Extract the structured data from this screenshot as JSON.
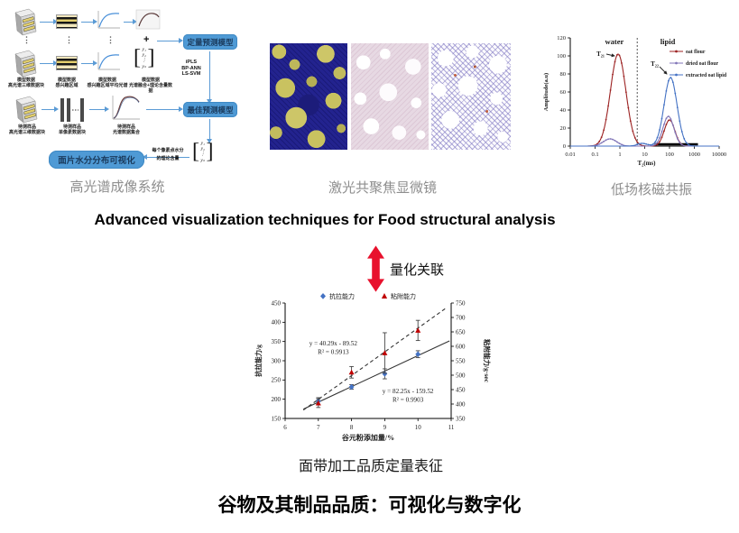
{
  "page": {
    "subtitle": "Advanced visualization techniques for Food structural analysis",
    "correlation_label": "量化关联",
    "scatter_caption": "面带加工品质定量表征",
    "main_title": "谷物及其制品品质：可视化与数字化",
    "accent_blue": "#4f9ad5",
    "accent_red": "#e8112d",
    "caption_gray": "#8e8e8e"
  },
  "panels": {
    "hyperspectral": {
      "caption": "高光谱成像系统",
      "flow": {
        "box_quant": "定量预测模型",
        "box_best": "最佳预测模型",
        "box_visual": "面片水分分布可视化",
        "algos": [
          "iPLS",
          "BP-ANN",
          "LS-SVM"
        ],
        "plus_sign": "+",
        "dots": "⋮",
        "pixel_note": [
          "每个像素点水分",
          "的理论含量"
        ],
        "vector": [
          "y₁",
          "y₂",
          "⋮",
          "yₙ"
        ],
        "row1_labels": [
          {
            "l1": "模型数据",
            "l2": "高光谱三维数据块"
          },
          {
            "l1": "模型数据",
            "l2": "感兴趣区域"
          },
          {
            "l1": "模型数据",
            "l2": "感兴趣区域平均光谱"
          },
          {
            "l1": "模型数据",
            "l2": "光谱融合+理论含量数据"
          }
        ],
        "row3_labels": [
          {
            "l1": "待测样品",
            "l2": "高光谱三维数据块"
          },
          {
            "l1": "待测样品",
            "l2": "单像素数据块"
          },
          {
            "l1": "待测样品",
            "l2": "光谱数据集合"
          }
        ]
      }
    },
    "confocal": {
      "caption": "激光共聚焦显微镜"
    },
    "nmr": {
      "caption": "低场核磁共振"
    }
  },
  "chart_data": [
    {
      "type": "line",
      "name": "low-field-nmr-relaxation",
      "xlabel": "T₂(ms)",
      "ylabel": "Amplitude(a.u)",
      "x_scale": "log",
      "xlim": [
        0.01,
        10000
      ],
      "ylim": [
        0,
        120
      ],
      "xticks": [
        "0.01",
        "0.1",
        "1",
        "10",
        "100",
        "1000",
        "10000"
      ],
      "yticks": [
        0,
        20,
        40,
        60,
        80,
        100,
        120
      ],
      "legend_position": "top-right",
      "annotations": {
        "region_left": "water",
        "region_right": "lipid",
        "divider_x_ms": 5,
        "t21_label": "T₂₁",
        "t21_peak": {
          "x_ms": 0.85,
          "y": 102
        },
        "t22_label": "T₂₂",
        "t22_peak": {
          "x_ms": 110,
          "y": 76
        },
        "baseline_bar_ms": [
          25,
          1400
        ]
      },
      "series": [
        {
          "name": "oat flour",
          "color": "#9c2222",
          "peaks": [
            {
              "center_ms": 0.85,
              "height": 102,
              "sigma_log": 0.31
            },
            {
              "center_ms": 100,
              "height": 29,
              "sigma_log": 0.21
            }
          ]
        },
        {
          "name": "dried oat flour",
          "color": "#8176b8",
          "peaks": [
            {
              "center_ms": 0.4,
              "height": 8,
              "sigma_log": 0.27
            },
            {
              "center_ms": 90,
              "height": 33,
              "sigma_log": 0.22
            }
          ]
        },
        {
          "name": "extracted oat lipid",
          "color": "#4472c4",
          "peaks": [
            {
              "center_ms": 8,
              "height": 3,
              "sigma_log": 0.2
            },
            {
              "center_ms": 110,
              "height": 76,
              "sigma_log": 0.26
            }
          ]
        }
      ]
    },
    {
      "type": "scatter",
      "name": "dough-sheet-quality",
      "xlabel": "谷元粉添加量/%",
      "ylabel_left": "抗拉能力/g",
      "ylabel_right": "粘附能力/g·sec",
      "xlim": [
        6,
        11
      ],
      "xticks": [
        6,
        7,
        8,
        9,
        10,
        11
      ],
      "ylim_left": [
        150,
        450
      ],
      "yticks_left": [
        150,
        200,
        250,
        300,
        350,
        400,
        450
      ],
      "ylim_right": [
        350,
        750
      ],
      "yticks_right": [
        350,
        400,
        450,
        500,
        550,
        600,
        650,
        700,
        750
      ],
      "legend": [
        "抗拉能力",
        "粘附能力"
      ],
      "series": [
        {
          "name": "抗拉能力",
          "axis": "left",
          "color": "#4472c4",
          "marker": "diamond",
          "x": [
            7,
            8,
            9,
            10
          ],
          "y": [
            195,
            232,
            266,
            317
          ],
          "yerr": [
            9,
            6,
            13,
            9
          ],
          "fit": {
            "equation": "y = 40.29x - 89.52",
            "r2": "R² = 0.9913",
            "slope": 40.29,
            "intercept": -89.52,
            "line_style": "solid",
            "x_range": [
              6.55,
              10.95
            ],
            "label_pos": {
              "x": 7.45,
              "y": 340
            }
          }
        },
        {
          "name": "粘附能力",
          "axis": "right",
          "color": "#c00000",
          "marker": "triangle",
          "x": [
            7,
            8,
            9,
            10
          ],
          "y": [
            403,
            510,
            577,
            655
          ],
          "yerr": [
            15,
            20,
            70,
            35
          ],
          "fit": {
            "equation": "y = 82.25x - 159.52",
            "r2": "R² = 0.9903",
            "slope": 82.25,
            "intercept": -159.52,
            "line_style": "dashed",
            "x_range": [
              6.55,
              10.85
            ],
            "label_pos": {
              "x": 9.7,
              "y": 216
            }
          }
        }
      ]
    }
  ]
}
